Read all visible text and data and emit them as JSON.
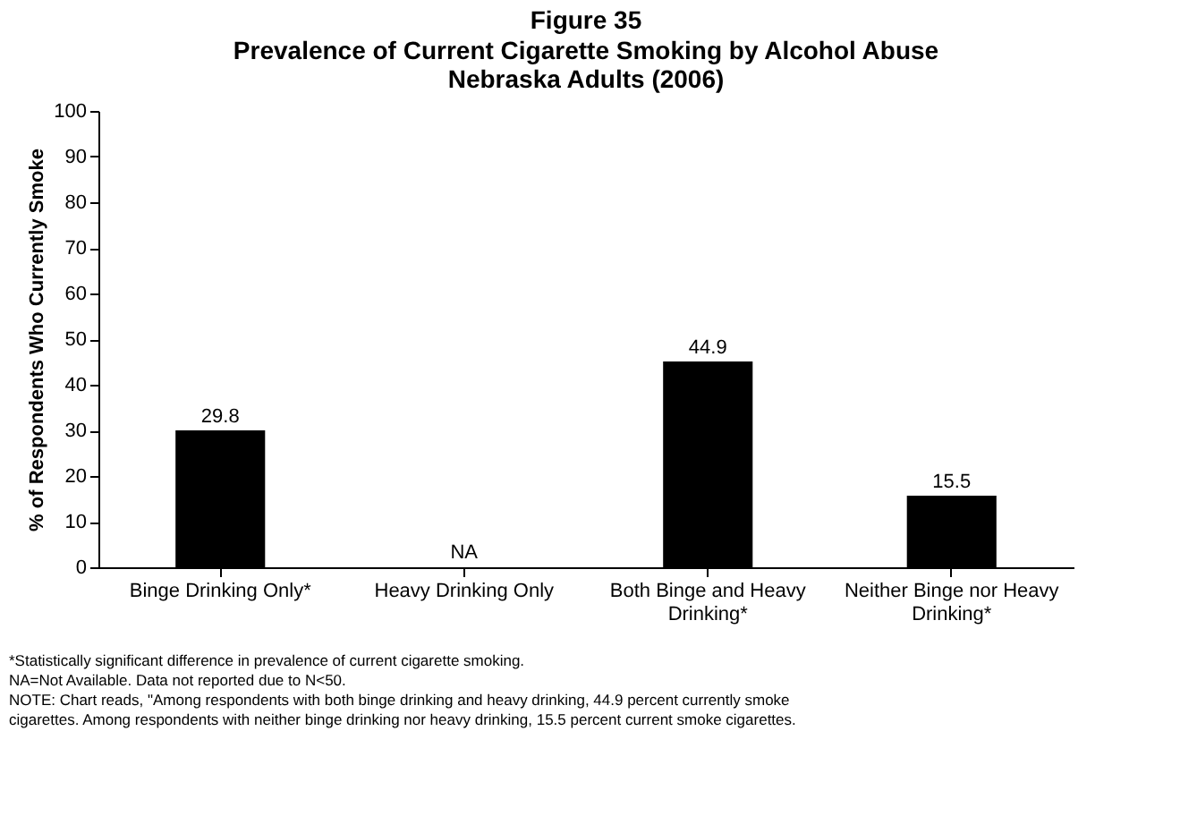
{
  "chart_data": {
    "type": "bar",
    "title": "Figure 35",
    "subtitle": "Prevalence of Current Cigarette Smoking by Alcohol Abuse\nNebraska Adults (2006)",
    "ylabel": "% of Respondents Who Currently Smoke",
    "categories": [
      "Binge Drinking Only*",
      "Heavy Drinking Only",
      "Both Binge and Heavy Drinking*",
      "Neither Binge nor Heavy Drinking*"
    ],
    "values": [
      29.8,
      null,
      44.9,
      15.5
    ],
    "value_labels": [
      "29.8",
      "NA",
      "44.9",
      "15.5"
    ],
    "color": "#000000",
    "ylim": [
      0,
      100
    ],
    "yticks": [
      0,
      10,
      20,
      30,
      40,
      50,
      60,
      70,
      80,
      90,
      100
    ],
    "grid": false,
    "annotations": [
      "*Statistically significant difference in prevalence of current cigarette smoking.",
      "NA=Not Available. Data not reported due to N<50.",
      "NOTE: Chart reads, \"Among respondents with both binge drinking and heavy drinking, 44.9 percent currently smoke cigarettes. Among respondents with neither binge drinking nor heavy drinking, 15.5 percent current smoke cigarettes."
    ]
  }
}
